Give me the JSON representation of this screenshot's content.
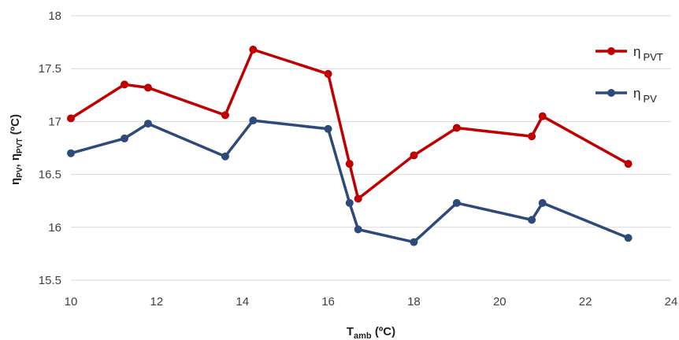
{
  "chart_data": {
    "type": "line",
    "xlim": [
      10,
      24
    ],
    "ylim": [
      15.5,
      18
    ],
    "x_ticks": [
      10,
      12,
      14,
      16,
      18,
      20,
      22,
      24
    ],
    "y_ticks": [
      15.5,
      16,
      16.5,
      17,
      17.5,
      18
    ],
    "x_tick_labels": [
      "10",
      "12",
      "14",
      "16",
      "18",
      "20",
      "22",
      "24"
    ],
    "y_tick_labels": [
      "15.5",
      "16",
      "16.5",
      "17",
      "17.5",
      "18"
    ],
    "xlabel": {
      "main": "T",
      "sub": "amb",
      "unit": " (ºC)"
    },
    "ylabel": {
      "eta": "η",
      "sub1": "PV",
      "sep": ", ",
      "sub2": "PVT",
      "unit": " (ºC)"
    },
    "grid": {
      "horizontal": true,
      "vertical": false
    },
    "legend_position": "top-right",
    "series": [
      {
        "name": {
          "eta": "η",
          "sub": "PVT"
        },
        "color": "#c00000",
        "points": [
          {
            "x": 10.0,
            "y": 17.03
          },
          {
            "x": 11.25,
            "y": 17.35
          },
          {
            "x": 11.8,
            "y": 17.32
          },
          {
            "x": 13.6,
            "y": 17.06
          },
          {
            "x": 14.25,
            "y": 17.68
          },
          {
            "x": 16.0,
            "y": 17.45
          },
          {
            "x": 16.5,
            "y": 16.6
          },
          {
            "x": 16.7,
            "y": 16.27
          },
          {
            "x": 18.0,
            "y": 16.68
          },
          {
            "x": 19.0,
            "y": 16.94
          },
          {
            "x": 20.75,
            "y": 16.86
          },
          {
            "x": 21.0,
            "y": 17.05
          },
          {
            "x": 23.0,
            "y": 16.6
          }
        ]
      },
      {
        "name": {
          "eta": "η",
          "sub": "PV"
        },
        "color": "#2e4a7a",
        "points": [
          {
            "x": 10.0,
            "y": 16.7
          },
          {
            "x": 11.25,
            "y": 16.84
          },
          {
            "x": 11.8,
            "y": 16.98
          },
          {
            "x": 13.6,
            "y": 16.67
          },
          {
            "x": 14.25,
            "y": 17.01
          },
          {
            "x": 16.0,
            "y": 16.93
          },
          {
            "x": 16.5,
            "y": 16.23
          },
          {
            "x": 16.7,
            "y": 15.98
          },
          {
            "x": 18.0,
            "y": 15.86
          },
          {
            "x": 19.0,
            "y": 16.23
          },
          {
            "x": 20.75,
            "y": 16.07
          },
          {
            "x": 21.0,
            "y": 16.23
          },
          {
            "x": 23.0,
            "y": 15.9
          }
        ]
      }
    ]
  }
}
